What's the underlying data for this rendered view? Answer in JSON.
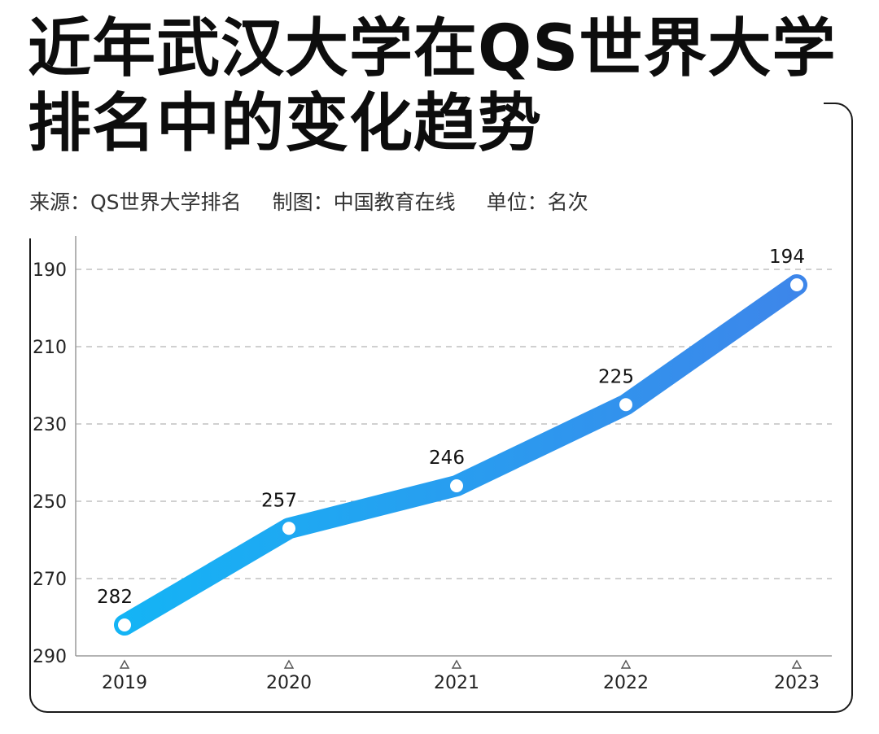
{
  "header": {
    "title": "近年武汉大学在QS世界大学排名中的变化趋势",
    "source": "来源：QS世界大学排名",
    "credit": "制图：中国教育在线",
    "unit": "单位：名次"
  },
  "colors": {
    "line_start": "#14b4f5",
    "line_end": "#3d86ea",
    "grid": "#b5b5b5",
    "axis": "#9a9a9a"
  },
  "chart_data": {
    "type": "line",
    "title": "近年武汉大学在QS世界大学排名中的变化趋势",
    "xlabel": "",
    "ylabel": "",
    "categories": [
      "2019",
      "2020",
      "2021",
      "2022",
      "2023"
    ],
    "series": [
      {
        "values": [
          282,
          257,
          246,
          225,
          194
        ]
      }
    ],
    "data_labels": [
      "282",
      "257",
      "246",
      "225",
      "194"
    ],
    "y_ticks": [
      190,
      210,
      230,
      250,
      270,
      290
    ],
    "y_tick_labels": [
      "190",
      "210",
      "230",
      "250",
      "270",
      "290"
    ],
    "ylim": [
      290,
      186
    ],
    "y_inverted": true,
    "grid": "horizontal dashed",
    "legend": "none"
  }
}
